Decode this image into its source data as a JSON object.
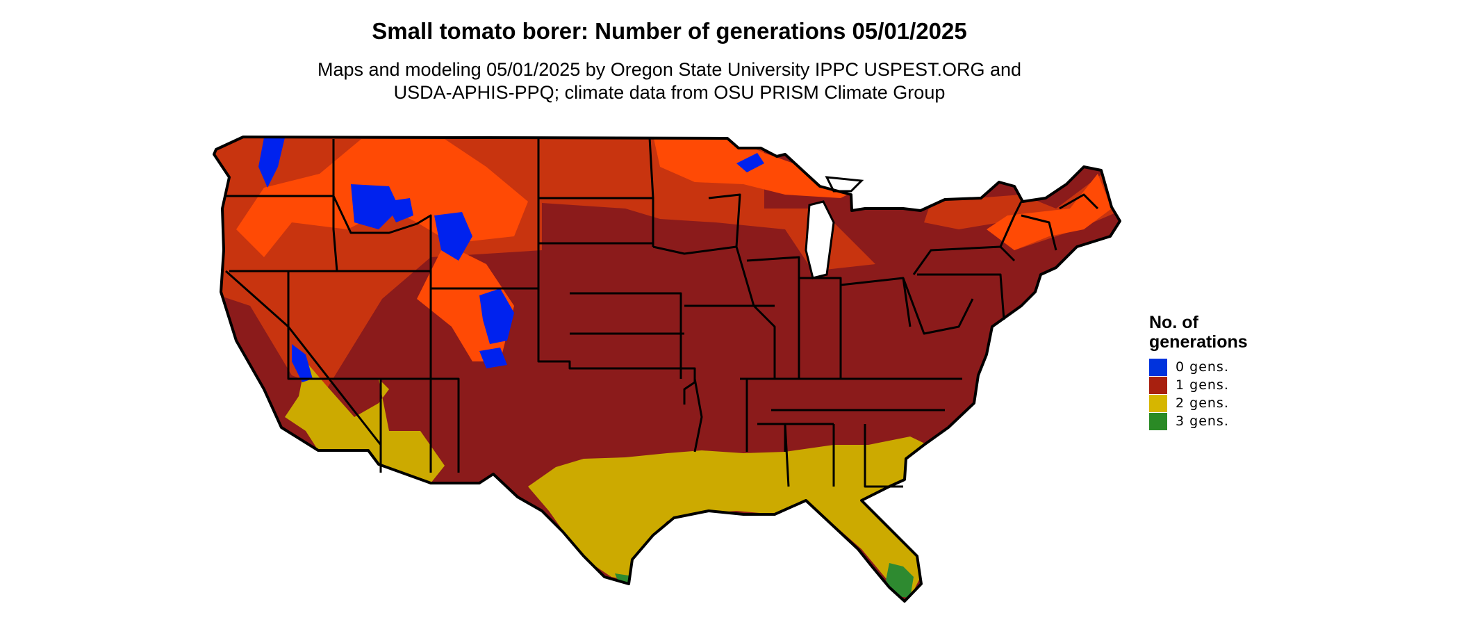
{
  "title": "Small tomato borer: Number of generations 05/01/2025",
  "subtitle": {
    "line1": "Maps and modeling 05/01/2025 by Oregon State University IPPC USPEST.ORG and",
    "line2": "USDA-APHIS-PPQ; climate data from OSU PRISM Climate Group"
  },
  "legend": {
    "title": "No. of generations",
    "items": [
      {
        "label": "0 gens.",
        "color": "#0033dd"
      },
      {
        "label": "1 gens.",
        "color": "#a8200f"
      },
      {
        "label": "2 gens.",
        "color": "#d6b600"
      },
      {
        "label": "3 gens.",
        "color": "#2a8a25"
      }
    ]
  },
  "map_colors": {
    "one_gen_dark": "#8b1b1b",
    "one_gen_mid": "#c8340f",
    "one_gen_light": "#ff4a05",
    "two_gens": "#ccaa00",
    "three_gens": "#2e8a30",
    "zero_gens": "#0022ee",
    "border": "#000000"
  }
}
